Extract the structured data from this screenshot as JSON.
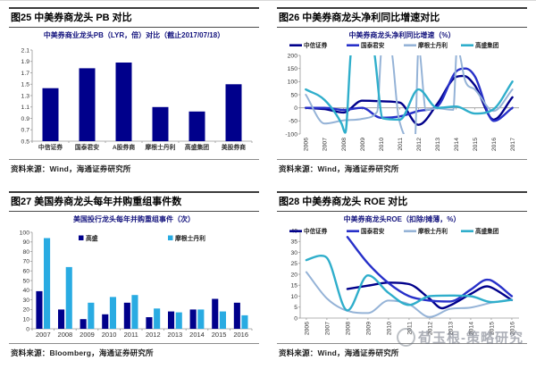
{
  "colors": {
    "navy": "#00008B",
    "royal": "#2730C9",
    "periwinkle": "#95B3D7",
    "teal": "#2FAECB",
    "cyan": "#29ABE2",
    "chart_title": "#14147E",
    "axis": "#9a9a9a",
    "tick_label": "#333333",
    "legend_text": "#222222"
  },
  "watermark": {
    "text": "荀玉根-策略研究"
  },
  "charts": [
    {
      "header": "图25 中美券商龙头 PB 对比",
      "source": "资料来源：Wind，海通证券研究所"
    },
    {
      "header": "图26 中美券商龙头净利同比增速对比",
      "source": "资料来源：Wind，海通证券研究所"
    },
    {
      "header": "图27 美国券商龙头每年并购重组事件数",
      "source": "资料来源：Bloomberg，海通证券研究所"
    },
    {
      "header": "图28 中美券商龙头 ROE 对比",
      "source": "资料来源：Wind，海通证券研究所"
    }
  ],
  "chart_data": [
    {
      "type": "bar",
      "title": "中美券商业龙头PB（LYR，倍）对比（截止2017/07/18）",
      "categories": [
        "中信证券",
        "国泰君安",
        "A股券商",
        "摩根士丹利",
        "高盛集团",
        "美股券商"
      ],
      "values": [
        1.43,
        1.78,
        1.88,
        1.1,
        1.02,
        1.5
      ],
      "bar_color": "navy",
      "ylim": [
        0.5,
        2.1
      ],
      "ytick": 0.2,
      "grid": false,
      "legend": "none"
    },
    {
      "type": "line",
      "title": "中美券商龙头净利同比增速（%）",
      "xlim": [
        2005.7,
        2017.35
      ],
      "xticks": [
        2006,
        2007,
        2008,
        2009,
        2010,
        2011,
        2012,
        2013,
        2014,
        2015,
        2016,
        2017
      ],
      "ylim": [
        -100,
        200
      ],
      "ytick": 50,
      "grid": false,
      "legend": "top-row",
      "series": [
        {
          "name": "中信证券",
          "color": "navy",
          "width": 2.4,
          "points": [
            [
              2006,
              0
            ],
            [
              2007,
              -5
            ],
            [
              2008,
              -18
            ],
            [
              2009,
              27
            ],
            [
              2010,
              25
            ],
            [
              2011,
              20
            ],
            [
              2012,
              -65
            ],
            [
              2013,
              15
            ],
            [
              2014,
              118
            ],
            [
              2014.4,
              122
            ],
            [
              2015,
              85
            ],
            [
              2016,
              -45
            ],
            [
              2017,
              40
            ]
          ]
        },
        {
          "name": "国泰君安",
          "color": "royal",
          "width": 2.4,
          "points": [
            [
              2006,
              0
            ],
            [
              2007,
              0
            ],
            [
              2008,
              -8
            ],
            [
              2009,
              0
            ],
            [
              2010,
              -38
            ],
            [
              2011,
              -33
            ],
            [
              2012,
              -12
            ],
            [
              2013,
              5
            ],
            [
              2014,
              138
            ],
            [
              2014.5,
              150
            ],
            [
              2015,
              120
            ],
            [
              2016,
              -50
            ],
            [
              2017,
              0
            ]
          ]
        },
        {
          "name": "摩根士丹利",
          "color": "periwinkle",
          "width": 2,
          "points": [
            [
              2006,
              50
            ],
            [
              2007,
              -60
            ],
            [
              2008,
              -48
            ],
            [
              2009,
              -42
            ],
            [
              2009.8,
              -15
            ],
            [
              2010.05,
              230
            ],
            [
              2010.5,
              230
            ],
            [
              2010.95,
              -40
            ],
            [
              2011.8,
              -130
            ],
            [
              2012,
              230
            ],
            [
              2012.4,
              -8
            ],
            [
              2013,
              -2
            ],
            [
              2013.85,
              -8
            ],
            [
              2014.05,
              230
            ],
            [
              2014.5,
              100
            ],
            [
              2015,
              70
            ],
            [
              2016,
              -12
            ],
            [
              2017,
              70
            ]
          ]
        },
        {
          "name": "高盛集团",
          "color": "teal",
          "width": 2.4,
          "points": [
            [
              2006,
              70
            ],
            [
              2007,
              30
            ],
            [
              2007.9,
              -60
            ],
            [
              2008.1,
              -95
            ],
            [
              2008.45,
              230
            ],
            [
              2009.55,
              230
            ],
            [
              2010.1,
              -40
            ],
            [
              2011,
              -45
            ],
            [
              2012,
              70
            ],
            [
              2013,
              0
            ],
            [
              2014,
              5
            ],
            [
              2015,
              -22
            ],
            [
              2016,
              -5
            ],
            [
              2017,
              100
            ]
          ]
        }
      ]
    },
    {
      "type": "bar",
      "title": "美国投行龙头每年并购重组事件（次）",
      "categories": [
        "2007",
        "2008",
        "2009",
        "2010",
        "2011",
        "2012",
        "2013",
        "2014",
        "2015",
        "2016"
      ],
      "series": [
        {
          "name": "高盛",
          "color": "navy",
          "values": [
            39,
            20,
            10,
            15,
            27,
            12,
            18,
            20,
            31,
            27
          ]
        },
        {
          "name": "摩根士丹利",
          "color": "cyan",
          "values": [
            94,
            64,
            27,
            33,
            35,
            21,
            17,
            20,
            18,
            14
          ]
        }
      ],
      "ylim": [
        0,
        100
      ],
      "ytick": 10,
      "grid": false,
      "legend": "inside"
    },
    {
      "type": "line",
      "title": "中美券商龙头ROE（扣除/摊薄，%）",
      "xlim": [
        2005.7,
        2016.35
      ],
      "xticks": [
        2006,
        2007,
        2008,
        2009,
        2010,
        2011,
        2012,
        2013,
        2014,
        2015,
        2016
      ],
      "ylim": [
        0,
        40
      ],
      "ytick": 5,
      "grid": false,
      "legend": "top-row",
      "series": [
        {
          "name": "中信证券",
          "color": "navy",
          "width": 2.4,
          "points": [
            [
              2008,
              13.3
            ],
            [
              2009,
              14.8
            ],
            [
              2010,
              16.2
            ],
            [
              2011,
              15.5
            ],
            [
              2012,
              8.8
            ],
            [
              2012.6,
              4.5
            ],
            [
              2013,
              5.8
            ],
            [
              2014,
              11
            ],
            [
              2014.8,
              14.5
            ],
            [
              2015,
              14
            ],
            [
              2016,
              8.2
            ]
          ]
        },
        {
          "name": "国泰君安",
          "color": "royal",
          "width": 2.4,
          "points": [
            [
              2008,
              37
            ],
            [
              2009,
              25
            ],
            [
              2010,
              16
            ],
            [
              2011,
              10
            ],
            [
              2012,
              8
            ],
            [
              2013,
              7.6
            ],
            [
              2014,
              13
            ],
            [
              2014.8,
              17.5
            ],
            [
              2015,
              17.2
            ],
            [
              2016,
              10
            ]
          ]
        },
        {
          "name": "摩根士丹利",
          "color": "periwinkle",
          "width": 2,
          "points": [
            [
              2006,
              21
            ],
            [
              2007,
              9
            ],
            [
              2008,
              3.3
            ],
            [
              2009,
              2.3
            ],
            [
              2010,
              8
            ],
            [
              2011,
              6.3
            ],
            [
              2012,
              0.5
            ],
            [
              2013,
              4.2
            ],
            [
              2014,
              4.8
            ],
            [
              2015,
              7
            ],
            [
              2016,
              8.5
            ]
          ]
        },
        {
          "name": "高盛集团",
          "color": "teal",
          "width": 2.4,
          "points": [
            [
              2006,
              26.5
            ],
            [
              2006.7,
              28.5
            ],
            [
              2007,
              27.5
            ],
            [
              2008,
              3.5
            ],
            [
              2009,
              19.5
            ],
            [
              2010,
              11.5
            ],
            [
              2011,
              6
            ],
            [
              2012,
              10
            ],
            [
              2013,
              10.3
            ],
            [
              2014,
              10
            ],
            [
              2015,
              7.3
            ],
            [
              2016,
              8.3
            ]
          ]
        }
      ]
    }
  ]
}
